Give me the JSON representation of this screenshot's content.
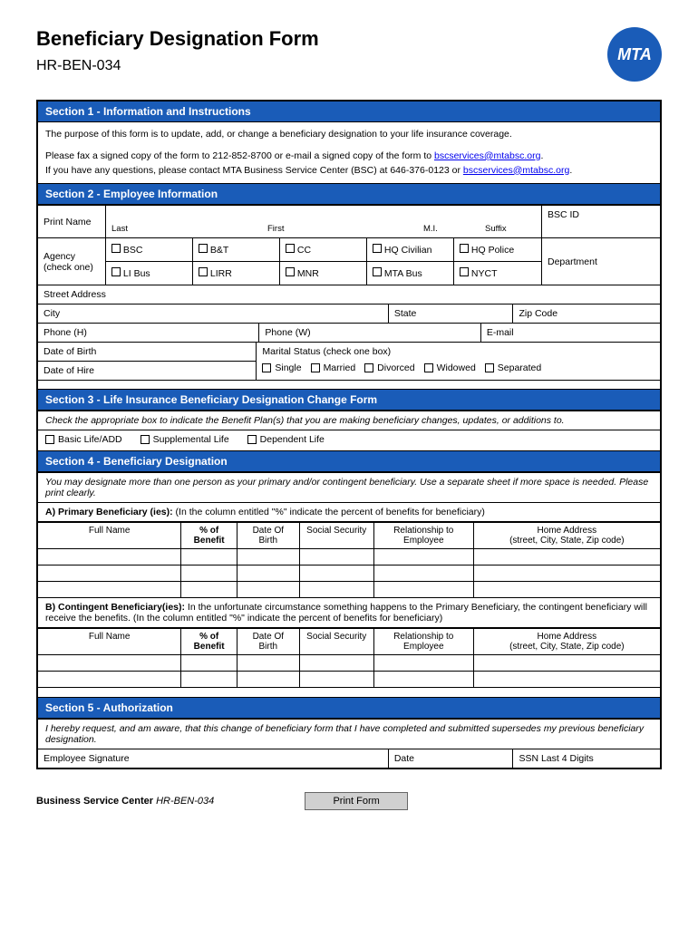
{
  "header": {
    "title": "Beneficiary Designation Form",
    "form_number": "HR-BEN-034",
    "logo_text": "MTA"
  },
  "sections": {
    "s1": {
      "title": "Section 1 - Information and Instructions",
      "line1": "The purpose of this form is to update, add, or change a beneficiary designation to your life insurance coverage.",
      "line2a": "Please fax a signed copy of the form to 212-852-8700 or e-mail a signed copy of the form to ",
      "email1": "bscservices@mtabsc.org",
      "line3a": "If you have any questions, please contact MTA Business Service Center (BSC) at 646-376-0123 or ",
      "email2": "bscservices@mtabsc.org"
    },
    "s2": {
      "title": "Section 2 - Employee Information",
      "print_name": "Print Name",
      "last": "Last",
      "first": "First",
      "mi": "M.I.",
      "suffix": "Suffix",
      "bsc_id": "BSC ID",
      "agency_label": "Agency (check one)",
      "agencies": [
        "BSC",
        "B&T",
        "CC",
        "HQ Civilian",
        "HQ Police",
        "LI Bus",
        "LIRR",
        "MNR",
        "MTA Bus",
        "NYCT"
      ],
      "department": "Department",
      "street": "Street Address",
      "city": "City",
      "state": "State",
      "zip": "Zip Code",
      "phone_h": "Phone (H)",
      "phone_w": "Phone (W)",
      "email": "E-mail",
      "dob": "Date of Birth",
      "doh": "Date of Hire",
      "marital_label": "Marital Status (check one box)",
      "marital_options": [
        "Single",
        "Married",
        "Divorced",
        "Widowed",
        "Separated"
      ]
    },
    "s3": {
      "title": "Section 3 - Life Insurance Beneficiary Designation Change Form",
      "instruction": "Check the appropriate box to indicate the Benefit Plan(s) that you are making beneficiary changes, updates, or additions to.",
      "plans": [
        "Basic Life/ADD",
        "Supplemental Life",
        "Dependent Life"
      ]
    },
    "s4": {
      "title": "Section 4 - Beneficiary Designation",
      "instruction": "You may designate more than one person as your primary and/or contingent beneficiary.  Use a separate sheet if more space is needed.  Please print clearly.",
      "primary_label": "A)    Primary Beneficiary (ies):",
      "primary_note": " (In the column entitled \"%\" indicate the percent of benefits for beneficiary)",
      "contingent_label": "B) Contingent Beneficiary(ies):",
      "contingent_note": " In the unfortunate circumstance something happens to the Primary Beneficiary, the contingent beneficiary will receive the benefits.  (In the column entitled \"%\" indicate the percent of benefits for beneficiary)",
      "columns": {
        "full_name": "Full Name",
        "percent": "% of Benefit",
        "dob": "Date Of Birth",
        "ssn": "Social Security",
        "rel": "Relationship to Employee",
        "addr": "Home Address",
        "addr_sub": "(street, City, State, Zip code)"
      }
    },
    "s5": {
      "title": "Section 5 - Authorization",
      "statement": "I hereby request, and am aware, that this change of beneficiary form that I have completed and submitted supersedes my previous beneficiary designation.",
      "sig": "Employee Signature",
      "date": "Date",
      "ssn4": "SSN Last 4 Digits"
    }
  },
  "footer": {
    "org": "Business Service Center",
    "form": "HR-BEN-034",
    "print_btn": "Print Form"
  },
  "colors": {
    "header_bg": "#1a5cb8",
    "link": "#0000ee"
  }
}
